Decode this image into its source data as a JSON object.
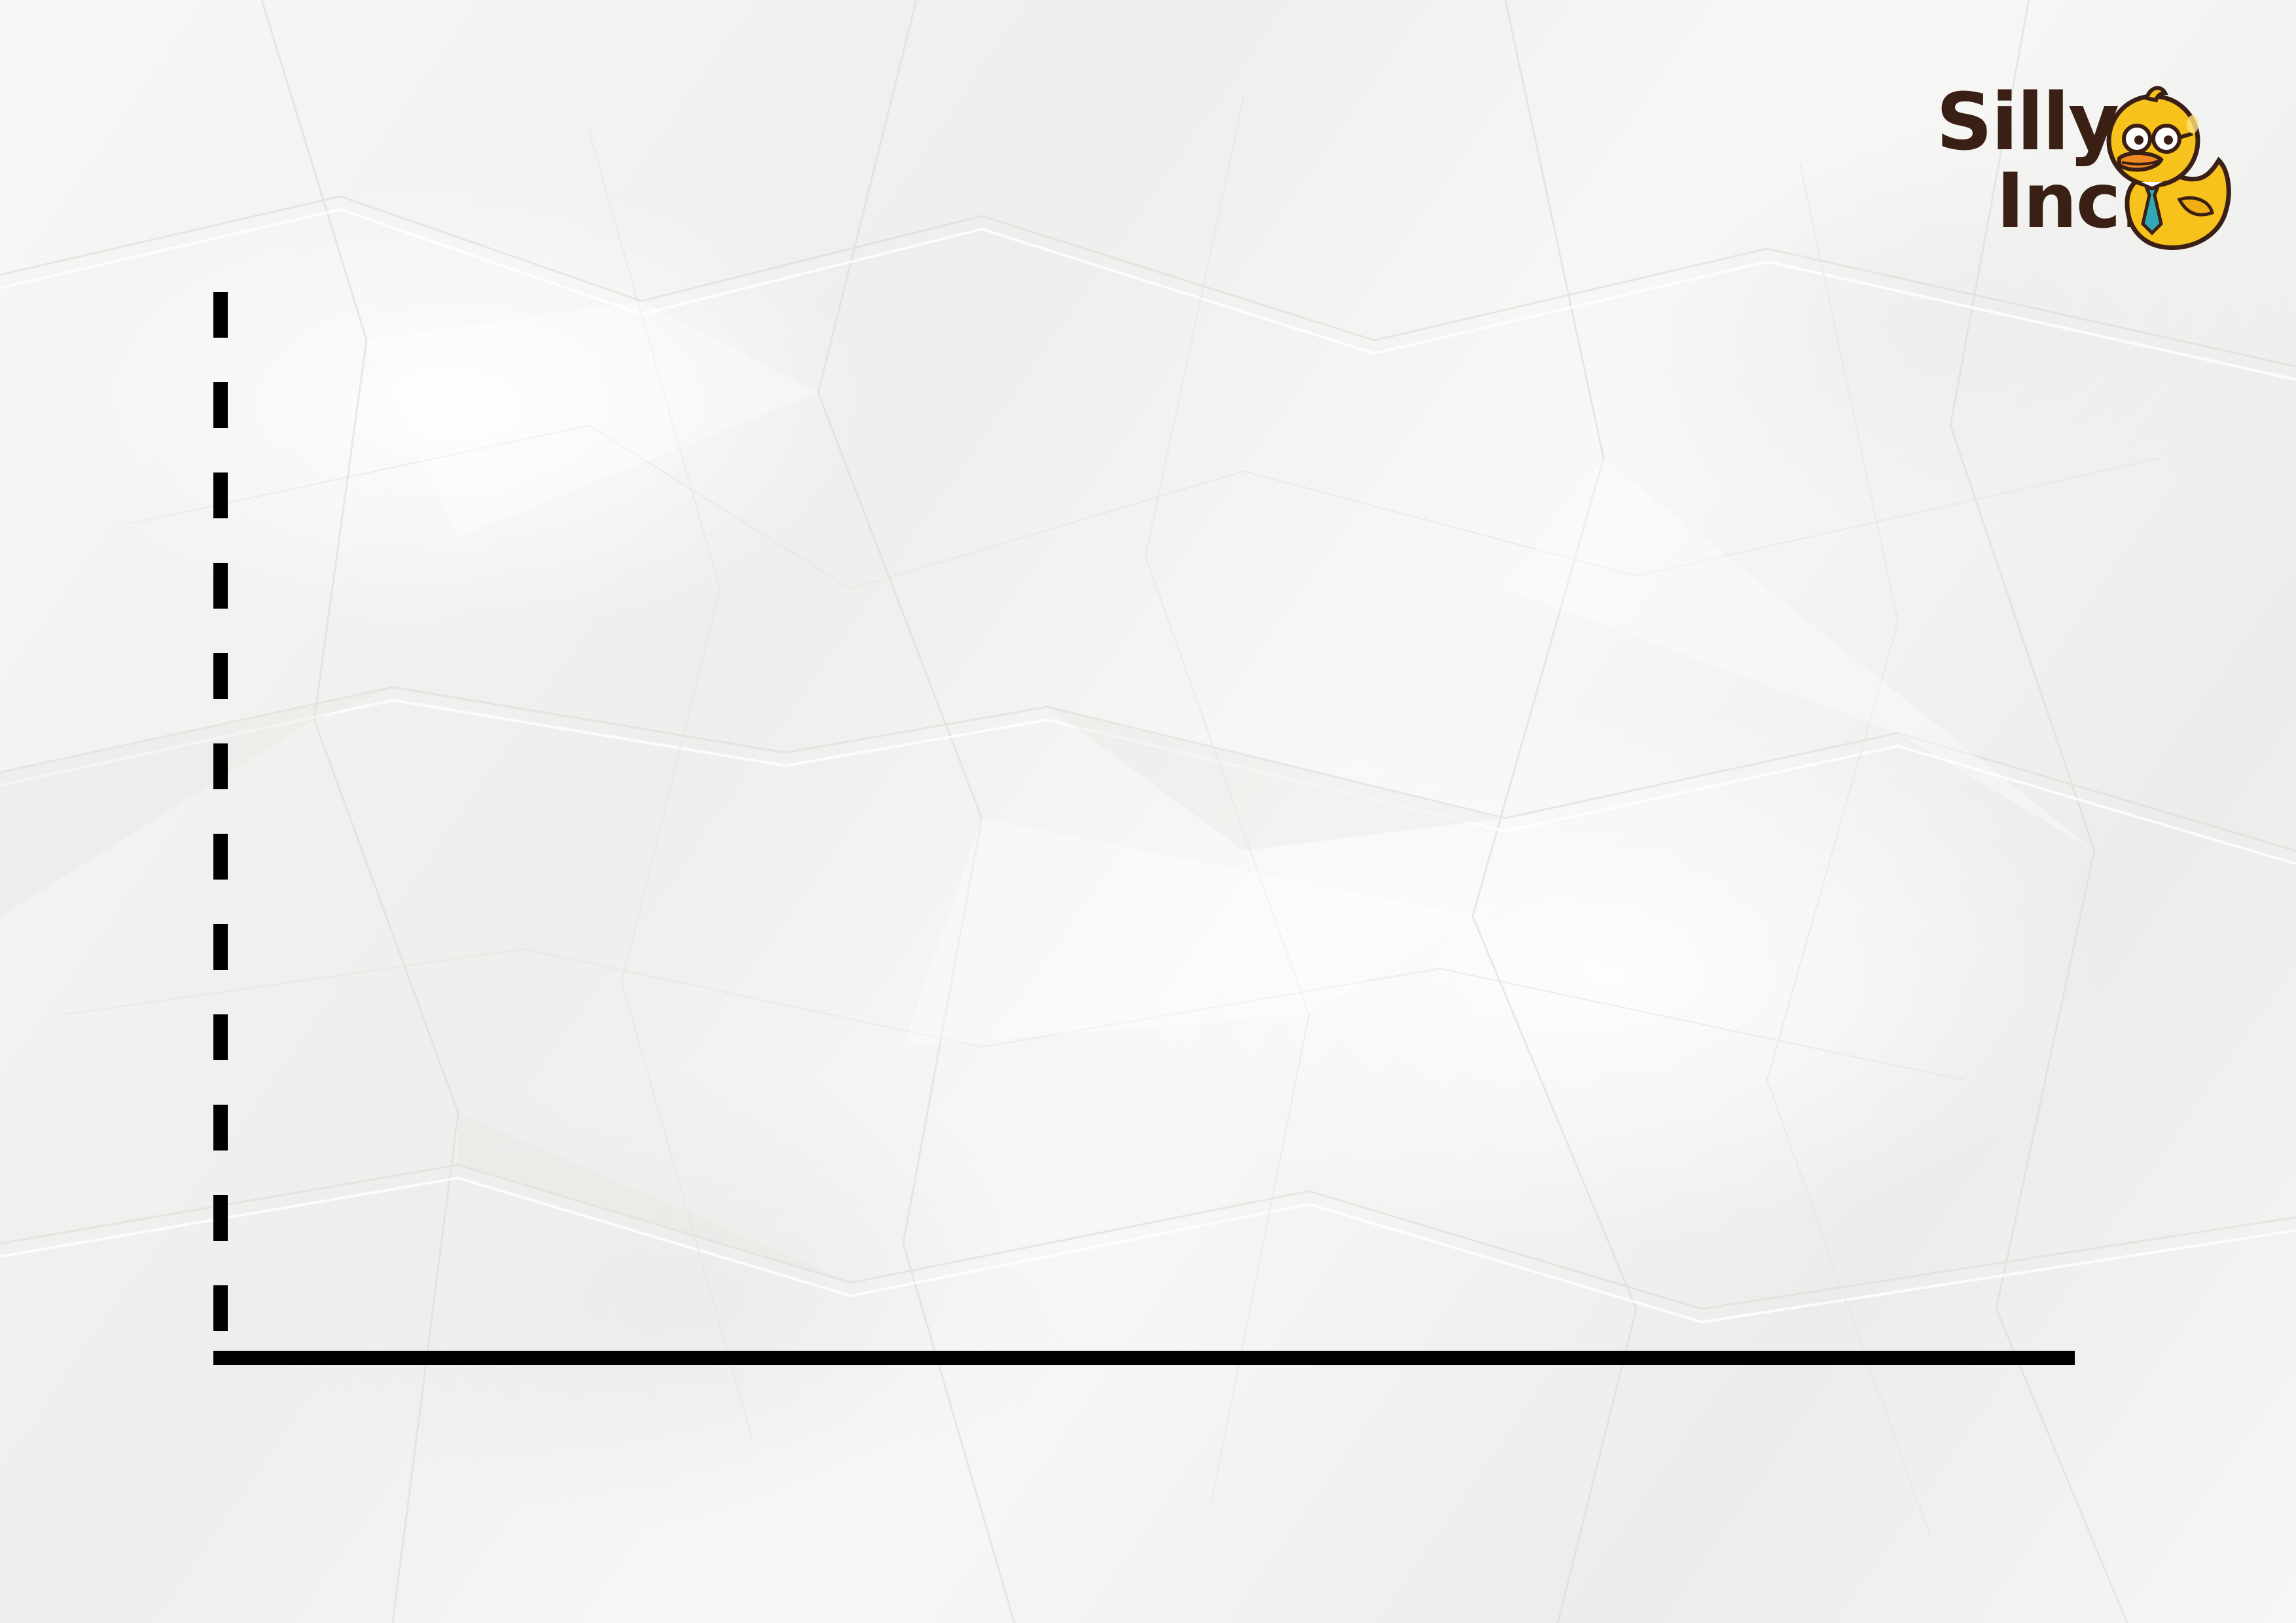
{
  "logo": {
    "line1": "Silly",
    "line2": "Inc.",
    "mascot_icon": "rubber-duck-with-glasses-and-tie-icon",
    "text_color": "#3a1f14",
    "duck_color": "#f7c21b",
    "beak_color": "#f08a24",
    "tie_color": "#2fa9b5"
  },
  "axes": {
    "y_axis_style": "dashed",
    "x_axis_style": "solid",
    "color": "#000000"
  },
  "background": {
    "texture": "crumpled-white-paper",
    "color": "#f5f5f4"
  }
}
